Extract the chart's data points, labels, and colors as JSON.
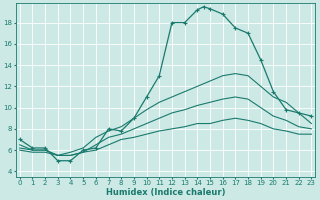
{
  "title": "",
  "xlabel": "Humidex (Indice chaleur)",
  "bg_color": "#cce9e5",
  "grid_color": "#ffffff",
  "line_color": "#1a7a6e",
  "x_ticks": [
    0,
    1,
    2,
    3,
    4,
    5,
    6,
    7,
    8,
    9,
    10,
    11,
    12,
    13,
    14,
    15,
    16,
    17,
    18,
    19,
    20,
    21,
    22,
    23
  ],
  "y_ticks": [
    4,
    6,
    8,
    10,
    12,
    14,
    16,
    18
  ],
  "ylim": [
    3.5,
    19.8
  ],
  "xlim": [
    -0.3,
    23.3
  ],
  "curve_main_x": [
    0,
    1,
    2,
    3,
    4,
    5,
    6,
    7,
    8,
    9,
    10,
    11,
    12,
    13,
    14,
    14.5,
    15,
    16,
    17,
    18,
    19,
    20,
    21,
    22,
    23
  ],
  "curve_main_y": [
    7.0,
    6.2,
    6.2,
    5.0,
    5.0,
    6.0,
    6.2,
    8.0,
    7.8,
    9.0,
    11.0,
    13.0,
    18.0,
    18.0,
    19.2,
    19.5,
    19.3,
    18.8,
    17.5,
    17.0,
    14.5,
    11.5,
    9.8,
    9.5,
    9.2
  ],
  "curve2_x": [
    0,
    1,
    2,
    3,
    4,
    5,
    6,
    7,
    8,
    9,
    10,
    11,
    12,
    13,
    14,
    15,
    16,
    17,
    18,
    19,
    20,
    21,
    22,
    23
  ],
  "curve2_y": [
    6.5,
    6.0,
    6.0,
    5.5,
    5.8,
    6.2,
    7.2,
    7.8,
    8.2,
    9.0,
    9.8,
    10.5,
    11.0,
    11.5,
    12.0,
    12.5,
    13.0,
    13.2,
    13.0,
    12.0,
    11.0,
    10.5,
    9.5,
    8.5
  ],
  "curve3_x": [
    0,
    1,
    2,
    3,
    4,
    5,
    6,
    7,
    8,
    9,
    10,
    11,
    12,
    13,
    14,
    15,
    16,
    17,
    18,
    19,
    20,
    21,
    22,
    23
  ],
  "curve3_y": [
    6.2,
    6.0,
    6.0,
    5.5,
    5.5,
    5.8,
    6.5,
    7.2,
    7.5,
    8.0,
    8.5,
    9.0,
    9.5,
    9.8,
    10.2,
    10.5,
    10.8,
    11.0,
    10.8,
    10.0,
    9.2,
    8.8,
    8.2,
    8.0
  ],
  "curve4_x": [
    0,
    1,
    2,
    3,
    4,
    5,
    6,
    7,
    8,
    9,
    10,
    11,
    12,
    13,
    14,
    15,
    16,
    17,
    18,
    19,
    20,
    21,
    22,
    23
  ],
  "curve4_y": [
    6.0,
    5.8,
    5.8,
    5.5,
    5.5,
    5.8,
    6.0,
    6.5,
    7.0,
    7.2,
    7.5,
    7.8,
    8.0,
    8.2,
    8.5,
    8.5,
    8.8,
    9.0,
    8.8,
    8.5,
    8.0,
    7.8,
    7.5,
    7.5
  ],
  "xlabel_fontsize": 6,
  "tick_fontsize": 5,
  "linewidth_main": 0.9,
  "linewidth_other": 0.8
}
